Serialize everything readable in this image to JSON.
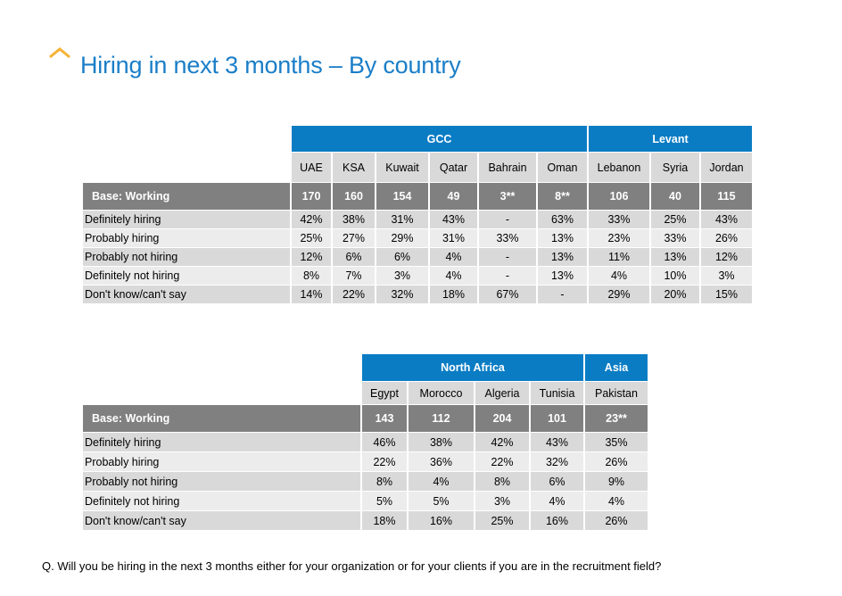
{
  "title": "Hiring in next 3 months – By country",
  "logo_icon": "chevron-up-icon",
  "colors": {
    "title": "#1a7ec8",
    "region_header": "#0a7cc4",
    "base_row": "#808080",
    "logo": "#f5b335"
  },
  "tables": [
    {
      "regions": [
        {
          "label": "GCC",
          "span": 6
        },
        {
          "label": "Levant",
          "span": 3
        }
      ],
      "countries": [
        "UAE",
        "KSA",
        "Kuwait",
        "Qatar",
        "Bahrain",
        "Oman",
        "Lebanon",
        "Syria",
        "Jordan"
      ],
      "base": {
        "label": "Base: Working",
        "values": [
          "170",
          "160",
          "154",
          "49",
          "3**",
          "8**",
          "106",
          "40",
          "115"
        ]
      },
      "rows": [
        {
          "label": "Definitely hiring",
          "values": [
            "42%",
            "38%",
            "31%",
            "43%",
            "-",
            "63%",
            "33%",
            "25%",
            "43%"
          ]
        },
        {
          "label": "Probably hiring",
          "values": [
            "25%",
            "27%",
            "29%",
            "31%",
            "33%",
            "13%",
            "23%",
            "33%",
            "26%"
          ]
        },
        {
          "label": "Probably not hiring",
          "values": [
            "12%",
            "6%",
            "6%",
            "4%",
            "-",
            "13%",
            "11%",
            "13%",
            "12%"
          ]
        },
        {
          "label": "Definitely not hiring",
          "values": [
            "8%",
            "7%",
            "3%",
            "4%",
            "-",
            "13%",
            "4%",
            "10%",
            "3%"
          ]
        },
        {
          "label": "Don't know/can't say",
          "values": [
            "14%",
            "22%",
            "32%",
            "18%",
            "67%",
            "-",
            "29%",
            "20%",
            "15%"
          ]
        }
      ]
    },
    {
      "regions": [
        {
          "label": "North Africa",
          "span": 4
        },
        {
          "label": "Asia",
          "span": 1
        }
      ],
      "countries": [
        "Egypt",
        "Morocco",
        "Algeria",
        "Tunisia",
        "Pakistan"
      ],
      "base": {
        "label": "Base: Working",
        "values": [
          "143",
          "112",
          "204",
          "101",
          "23**"
        ]
      },
      "rows": [
        {
          "label": "Definitely hiring",
          "values": [
            "46%",
            "38%",
            "42%",
            "43%",
            "35%"
          ]
        },
        {
          "label": "Probably hiring",
          "values": [
            "22%",
            "36%",
            "22%",
            "32%",
            "26%"
          ]
        },
        {
          "label": "Probably not hiring",
          "values": [
            "8%",
            "4%",
            "8%",
            "6%",
            "9%"
          ]
        },
        {
          "label": "Definitely not hiring",
          "values": [
            "5%",
            "5%",
            "3%",
            "4%",
            "4%"
          ]
        },
        {
          "label": "Don't know/can't say",
          "values": [
            "18%",
            "16%",
            "25%",
            "16%",
            "26%"
          ]
        }
      ]
    }
  ],
  "question": "Q. Will you be hiring in the next 3 months either for your organization or for your clients if you are in the recruitment field?"
}
